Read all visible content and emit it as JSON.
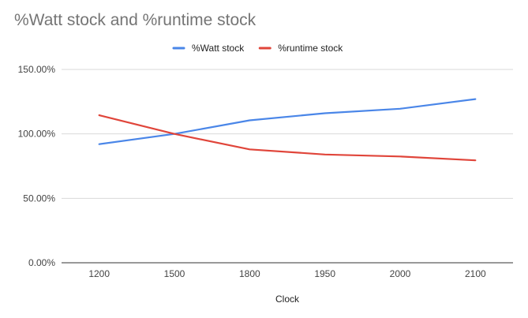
{
  "chart_data": {
    "type": "line",
    "title": "%Watt stock and %runtime stock",
    "xlabel": "Clock",
    "ylabel": "",
    "categories": [
      "1200",
      "1500",
      "1800",
      "1950",
      "2000",
      "2100"
    ],
    "y_ticks": [
      "0.00%",
      "50.00%",
      "100.00%",
      "150.00%"
    ],
    "y_tick_values": [
      0,
      50,
      100,
      150
    ],
    "ylim": [
      0,
      150
    ],
    "grid": true,
    "legend_position": "top",
    "series": [
      {
        "name": "%Watt stock",
        "color": "#4a86e8",
        "values": [
          92,
          100,
          110.5,
          116,
          119.5,
          127
        ]
      },
      {
        "name": "%runtime stock",
        "color": "#e0453a",
        "values": [
          114.5,
          100,
          88,
          84,
          82.5,
          79.5
        ]
      }
    ]
  }
}
